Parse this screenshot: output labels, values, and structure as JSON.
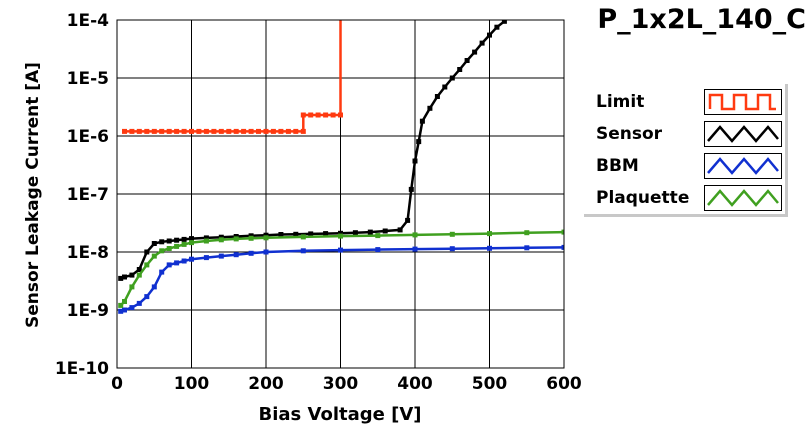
{
  "chart_data": {
    "type": "line",
    "title": "P_1x2L_140_C",
    "xlabel": "Bias Voltage [V]",
    "ylabel": "Sensor Leakage Current [A]",
    "xlim": [
      0,
      600
    ],
    "ylim": [
      1e-10,
      0.0001
    ],
    "yscale": "log",
    "grid": true,
    "legend_position": "right",
    "x_ticks": [
      "0",
      "100",
      "200",
      "300",
      "400",
      "500",
      "600"
    ],
    "y_ticks": [
      "1E-10",
      "1E-9",
      "1E-8",
      "1E-7",
      "1E-6",
      "1E-5",
      "1E-4"
    ],
    "series": [
      {
        "name": "Limit",
        "color": "#ff3a10",
        "x": [
          10,
          20,
          30,
          40,
          50,
          60,
          70,
          80,
          90,
          100,
          110,
          120,
          130,
          140,
          150,
          160,
          170,
          180,
          190,
          200,
          210,
          220,
          230,
          240,
          250,
          250,
          260,
          270,
          280,
          290,
          300,
          300
        ],
        "y": [
          1.2e-06,
          1.2e-06,
          1.2e-06,
          1.2e-06,
          1.2e-06,
          1.2e-06,
          1.2e-06,
          1.2e-06,
          1.2e-06,
          1.2e-06,
          1.2e-06,
          1.2e-06,
          1.2e-06,
          1.2e-06,
          1.2e-06,
          1.2e-06,
          1.2e-06,
          1.2e-06,
          1.2e-06,
          1.2e-06,
          1.2e-06,
          1.2e-06,
          1.2e-06,
          1.2e-06,
          1.2e-06,
          2.3e-06,
          2.3e-06,
          2.3e-06,
          2.3e-06,
          2.3e-06,
          2.3e-06,
          0.0001
        ]
      },
      {
        "name": "Sensor",
        "color": "#000000",
        "x": [
          5,
          10,
          20,
          30,
          40,
          50,
          60,
          70,
          80,
          90,
          100,
          120,
          140,
          160,
          180,
          200,
          220,
          240,
          260,
          280,
          300,
          320,
          340,
          360,
          380,
          390,
          395,
          400,
          405,
          410,
          420,
          430,
          440,
          450,
          460,
          470,
          480,
          490,
          500,
          510,
          520
        ],
        "y": [
          3.5e-09,
          3.7e-09,
          4e-09,
          5e-09,
          1e-08,
          1.4e-08,
          1.5e-08,
          1.55e-08,
          1.6e-08,
          1.65e-08,
          1.7e-08,
          1.75e-08,
          1.8e-08,
          1.85e-08,
          1.9e-08,
          1.95e-08,
          2e-08,
          2.02e-08,
          2.05e-08,
          2.08e-08,
          2.1e-08,
          2.15e-08,
          2.2e-08,
          2.3e-08,
          2.4e-08,
          3.5e-08,
          1.2e-07,
          3.7e-07,
          8e-07,
          1.8e-06,
          3e-06,
          4.8e-06,
          7e-06,
          1e-05,
          1.4e-05,
          2e-05,
          2.8e-05,
          4e-05,
          5.5e-05,
          7.5e-05,
          9.5e-05
        ]
      },
      {
        "name": "BBM",
        "color": "#1030d0",
        "x": [
          5,
          10,
          20,
          30,
          40,
          50,
          60,
          70,
          80,
          90,
          100,
          120,
          140,
          160,
          180,
          200,
          250,
          300,
          350,
          400,
          450,
          500,
          550,
          600
        ],
        "y": [
          9.5e-10,
          1e-09,
          1.1e-09,
          1.3e-09,
          1.7e-09,
          2.5e-09,
          4.5e-09,
          6e-09,
          6.5e-09,
          7e-09,
          7.5e-09,
          8e-09,
          8.5e-09,
          9e-09,
          9.5e-09,
          1e-08,
          1.05e-08,
          1.08e-08,
          1.1e-08,
          1.12e-08,
          1.14e-08,
          1.16e-08,
          1.18e-08,
          1.2e-08
        ]
      },
      {
        "name": "Plaquette",
        "color": "#40a020",
        "x": [
          5,
          10,
          20,
          30,
          40,
          50,
          60,
          70,
          80,
          90,
          100,
          120,
          140,
          160,
          180,
          200,
          250,
          300,
          350,
          400,
          450,
          500,
          550,
          600
        ],
        "y": [
          1.2e-09,
          1.4e-09,
          2.5e-09,
          4e-09,
          6e-09,
          8.5e-09,
          1.05e-08,
          1.15e-08,
          1.25e-08,
          1.35e-08,
          1.45e-08,
          1.55e-08,
          1.62e-08,
          1.68e-08,
          1.72e-08,
          1.76e-08,
          1.82e-08,
          1.88e-08,
          1.92e-08,
          1.97e-08,
          2.02e-08,
          2.08e-08,
          2.15e-08,
          2.2e-08
        ]
      }
    ]
  }
}
